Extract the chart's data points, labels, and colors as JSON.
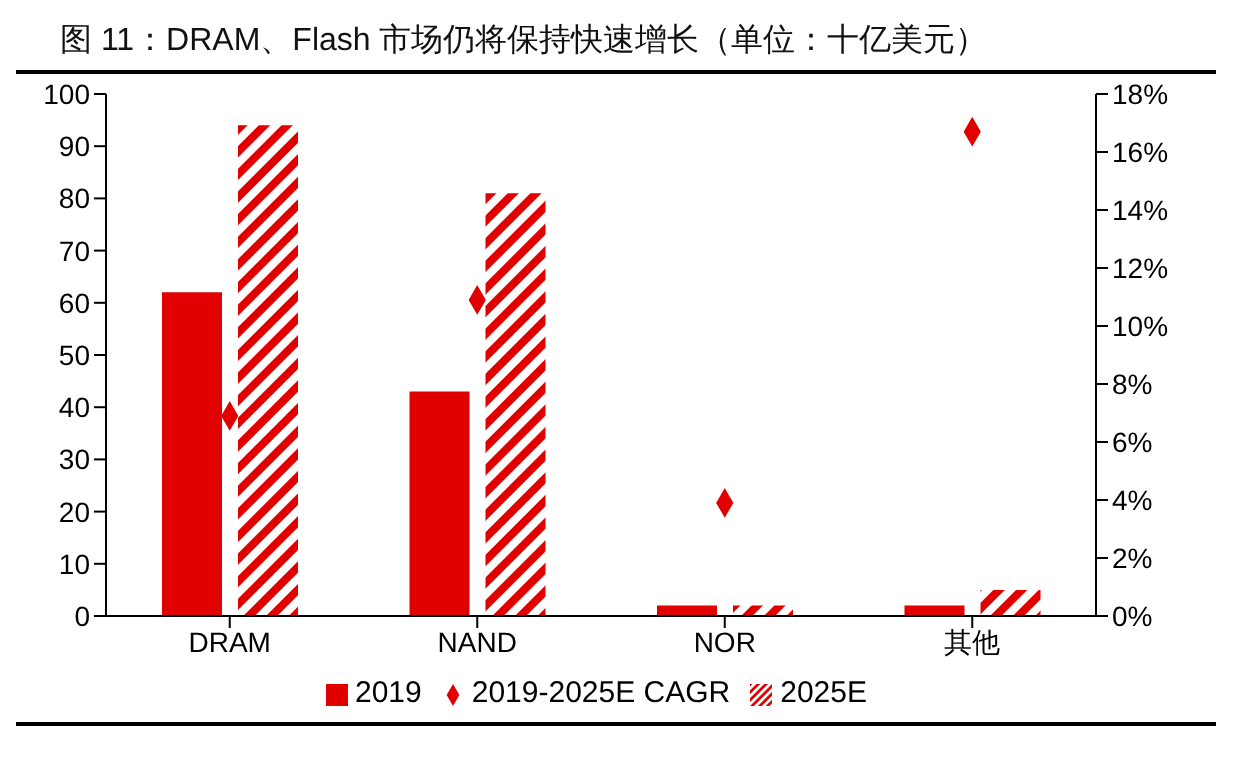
{
  "chart_data": {
    "type": "bar",
    "title": "图  11：DRAM、Flash 市场仍将保持快速增长（单位：十亿美元）",
    "categories": [
      "DRAM",
      "NAND",
      "NOR",
      "其他"
    ],
    "series": [
      {
        "name": "2019",
        "color": "#e00000",
        "values": [
          62,
          43,
          2,
          2
        ]
      },
      {
        "name": "2025E",
        "color": "#e00000",
        "values": [
          94,
          81,
          2,
          5
        ]
      },
      {
        "name": "2019-2025E  CAGR",
        "type": "scatter",
        "axis": "y2",
        "marker": "diamond",
        "color": "#e00000",
        "values": [
          6.9,
          10.9,
          3.9,
          16.7
        ]
      }
    ],
    "ylim": [
      0,
      100
    ],
    "yticks": [
      0,
      10,
      20,
      30,
      40,
      50,
      60,
      70,
      80,
      90,
      100
    ],
    "y2lim": [
      0,
      18
    ],
    "y2ticks": [
      {
        "value": 0,
        "label": "0%"
      },
      {
        "value": 2,
        "label": "2%"
      },
      {
        "value": 4,
        "label": "4%"
      },
      {
        "value": 6,
        "label": "6%"
      },
      {
        "value": 8,
        "label": "8%"
      },
      {
        "value": 10,
        "label": "10%"
      },
      {
        "value": 12,
        "label": "12%"
      },
      {
        "value": 14,
        "label": "14%"
      },
      {
        "value": 16,
        "label": "16%"
      },
      {
        "value": 18,
        "label": "18%"
      }
    ],
    "grid": false,
    "legend": "bottom"
  }
}
